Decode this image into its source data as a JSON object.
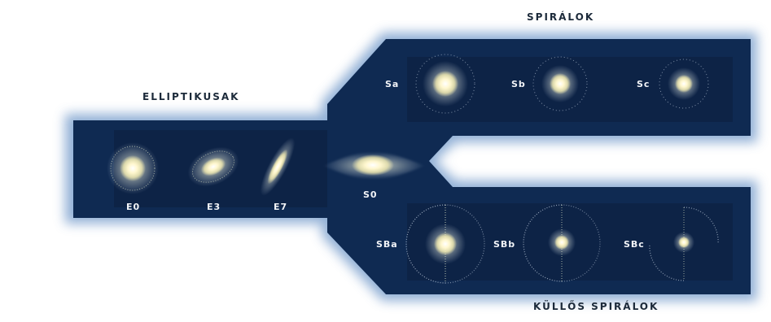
{
  "titles": {
    "elliptical": "ELLIPTIKUSAK",
    "spiral": "SPIRÁLOK",
    "barred": "KÜLLŐS SPIRÁLOK"
  },
  "labels": {
    "e0": "E0",
    "e3": "E3",
    "e7": "E7",
    "s0": "S0",
    "sa": "Sa",
    "sb": "Sb",
    "sc": "Sc",
    "sba": "SBa",
    "sbb": "SBb",
    "sbc": "SBc"
  },
  "colors": {
    "background": "#ffffff",
    "band_dark": "#0d2245",
    "band_mid": "#1a3c6e",
    "band_glow": "#8fb0d6",
    "core": "#fff6c9",
    "halo": "#f2f0d6",
    "title_text": "#1c2a3a"
  }
}
